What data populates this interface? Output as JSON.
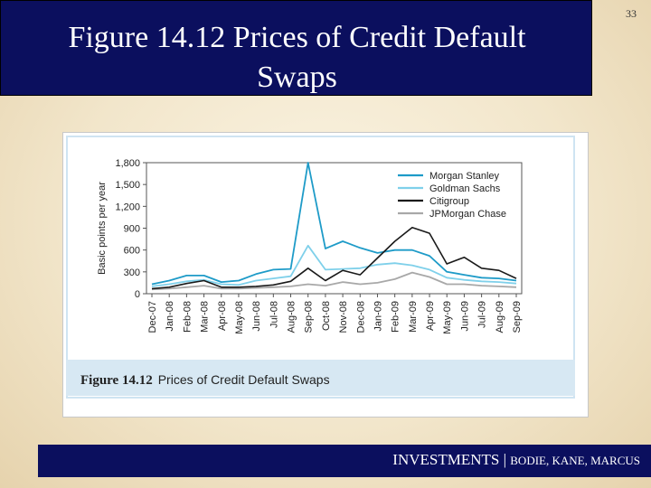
{
  "slide": {
    "title_line1": "Figure 14.12 Prices of Credit Default",
    "title_line2": "Swaps",
    "slide_number": "33",
    "footer_main": "INVESTMENTS",
    "footer_sep": " | ",
    "footer_authors": "BODIE, KANE, MARCUS"
  },
  "figure": {
    "caption_label": "Figure 14.12",
    "caption_text": "Prices of Credit Default Swaps"
  },
  "colors": {
    "title_bar": "#0b0f5e",
    "morgan_stanley": "#1e9bc8",
    "goldman_sachs": "#7fd0ea",
    "citigroup": "#1a1a1a",
    "jpmorgan_chase": "#a8a8a8"
  },
  "chart_data": {
    "type": "line",
    "title": "",
    "xlabel": "",
    "ylabel": "Basic points per year",
    "ylim": [
      0,
      1800
    ],
    "yticks": [
      0,
      300,
      600,
      900,
      1200,
      1500,
      1800
    ],
    "ytick_labels": [
      "0",
      "300",
      "600",
      "900",
      "1,200",
      "1,500",
      "1,800"
    ],
    "legend_position": "top-right",
    "grid": false,
    "categories": [
      "Dec-07",
      "Jan-08",
      "Feb-08",
      "Mar-08",
      "Apr-08",
      "May-08",
      "Jun-08",
      "Jul-08",
      "Aug-08",
      "Sep-08",
      "Oct-08",
      "Nov-08",
      "Dec-08",
      "Jan-09",
      "Feb-09",
      "Mar-09",
      "Apr-09",
      "May-09",
      "Jun-09",
      "Jul-09",
      "Aug-09",
      "Sep-09"
    ],
    "series": [
      {
        "name": "Morgan Stanley",
        "color": "#1e9bc8",
        "values": [
          130,
          180,
          250,
          250,
          160,
          180,
          270,
          330,
          340,
          1800,
          620,
          720,
          630,
          560,
          600,
          600,
          520,
          300,
          260,
          220,
          210,
          180
        ]
      },
      {
        "name": "Goldman Sachs",
        "color": "#7fd0ea",
        "values": [
          100,
          130,
          170,
          190,
          130,
          120,
          180,
          210,
          240,
          660,
          330,
          340,
          350,
          400,
          420,
          390,
          330,
          220,
          190,
          170,
          160,
          140
        ]
      },
      {
        "name": "Citigroup",
        "color": "#1a1a1a",
        "values": [
          70,
          90,
          140,
          180,
          90,
          90,
          100,
          120,
          170,
          350,
          180,
          320,
          260,
          490,
          720,
          910,
          830,
          410,
          500,
          350,
          320,
          210
        ]
      },
      {
        "name": "JPMorgan Chase",
        "color": "#a8a8a8",
        "values": [
          60,
          70,
          90,
          110,
          70,
          70,
          80,
          90,
          100,
          130,
          110,
          160,
          130,
          150,
          200,
          290,
          230,
          130,
          130,
          110,
          100,
          90
        ]
      }
    ]
  }
}
